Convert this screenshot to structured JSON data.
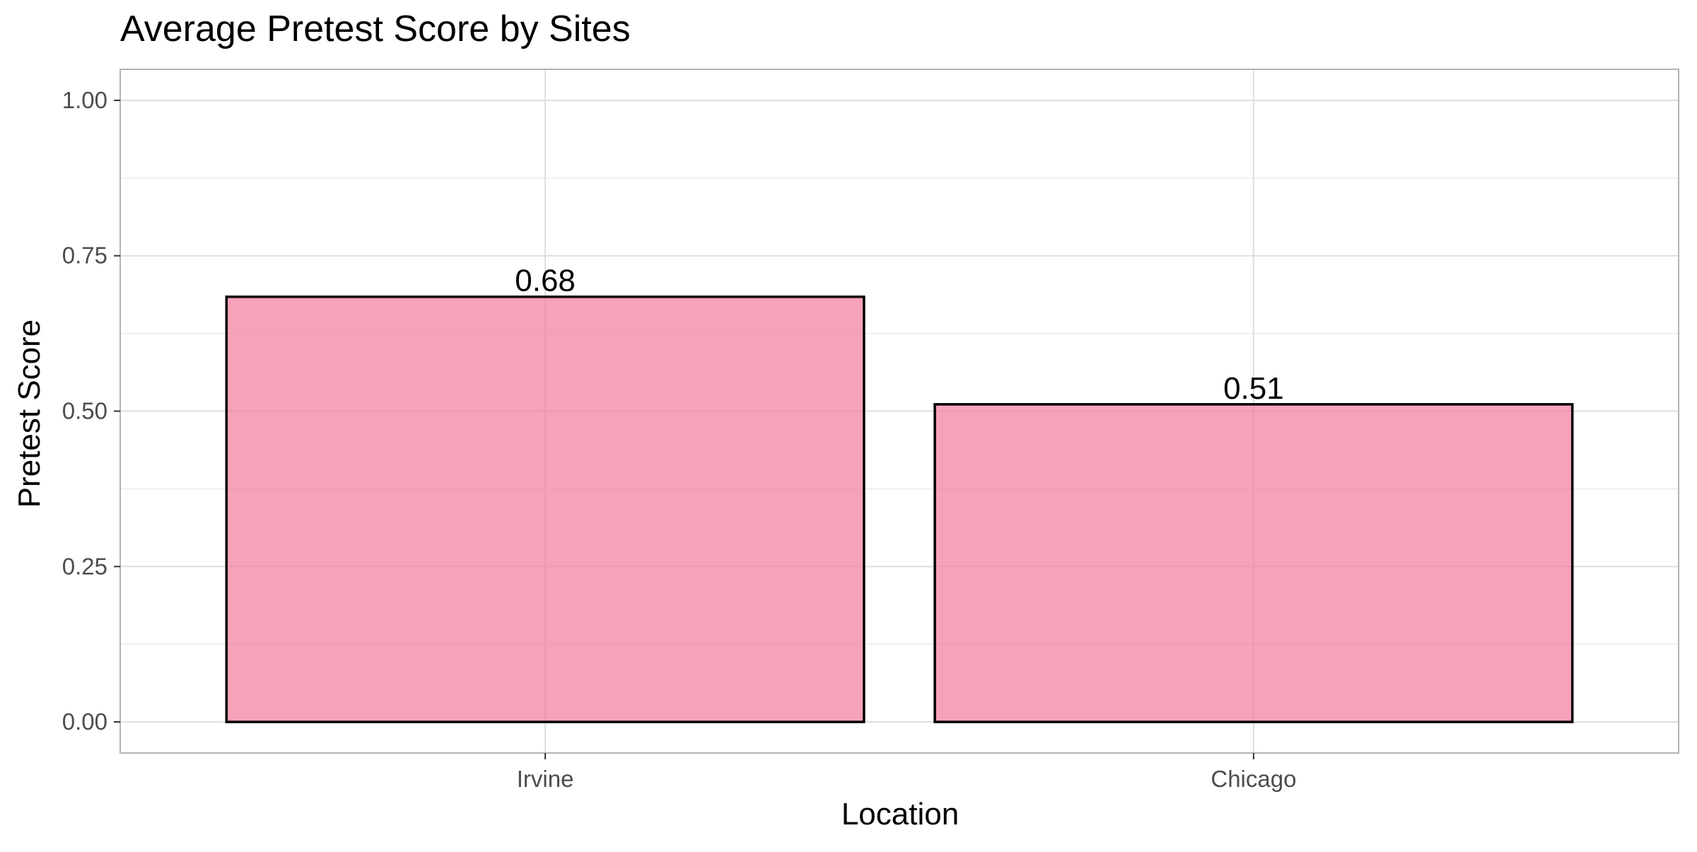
{
  "chart_data": {
    "type": "bar",
    "title": "Average Pretest Score by Sites",
    "xlabel": "Location",
    "ylabel": "Pretest Score",
    "categories": [
      "Irvine",
      "Chicago"
    ],
    "values": [
      0.684,
      0.511
    ],
    "value_labels": [
      "0.68",
      "0.51"
    ],
    "ylim": [
      -0.05,
      1.05
    ],
    "yticks": [
      0.0,
      0.25,
      0.5,
      0.75,
      1.0
    ],
    "ytick_labels": [
      "0.00",
      "0.25",
      "0.50",
      "0.75",
      "1.00"
    ],
    "grid": true,
    "legend": "none",
    "bar_color": "#f27b9b",
    "bar_opacity": 0.7,
    "bar_outline": "#000000"
  }
}
